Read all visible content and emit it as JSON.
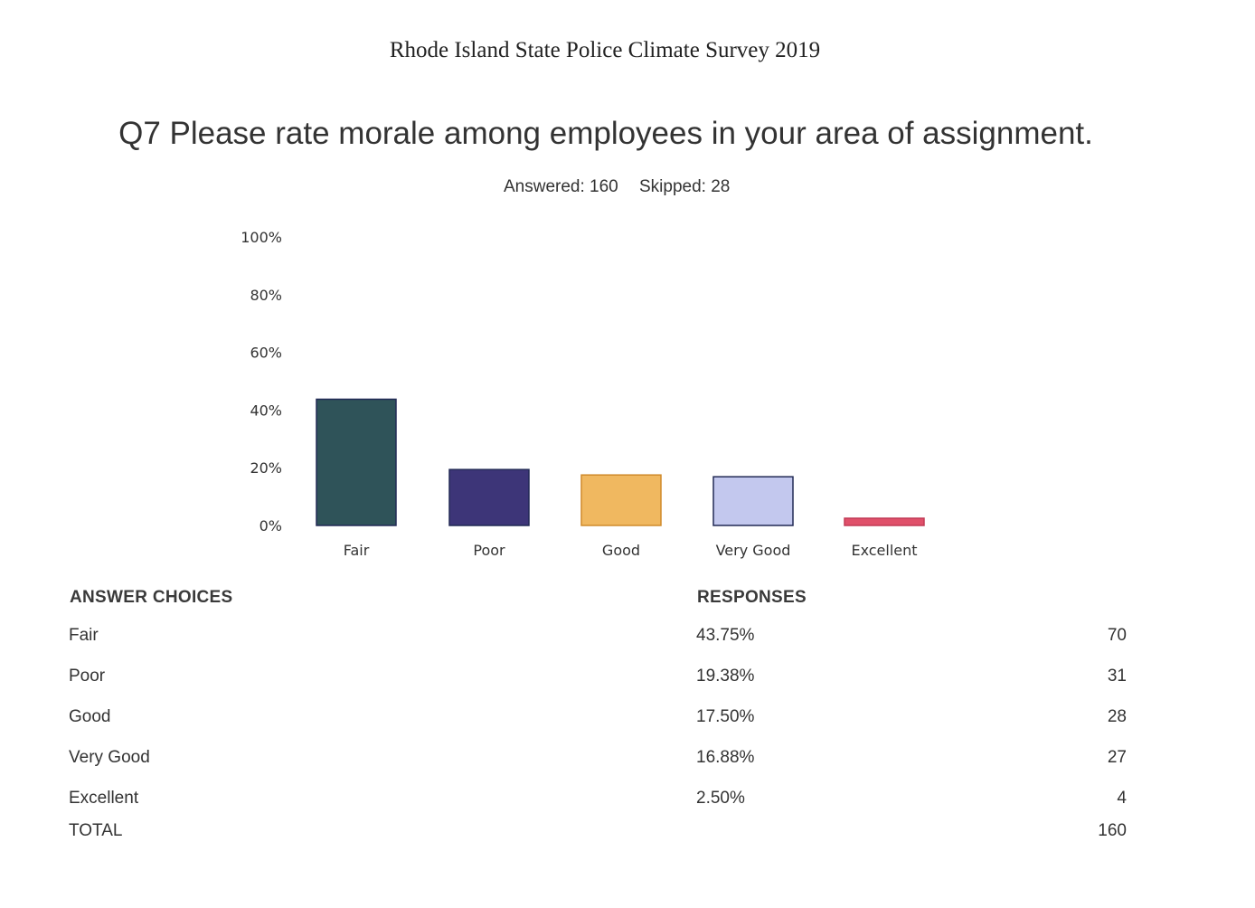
{
  "survey_title": "Rhode Island State Police Climate Survey 2019",
  "question": "Q7 Please rate morale among employees in your area of assignment.",
  "answered": "Answered: 160",
  "skipped": "Skipped: 28",
  "colors": {
    "Fair": "#2f5359",
    "Poor": "#3d3578",
    "Good": "#f0b860",
    "Very Good": "#c3c8ee",
    "Excellent": "#e0506a"
  },
  "chart_data": {
    "type": "bar",
    "categories": [
      "Fair",
      "Poor",
      "Good",
      "Very Good",
      "Excellent"
    ],
    "values": [
      43.75,
      19.38,
      17.5,
      16.88,
      2.5
    ],
    "ylim": [
      0,
      100
    ],
    "yticks": [
      "0%",
      "20%",
      "40%",
      "60%",
      "80%",
      "100%"
    ],
    "xlabel": "",
    "ylabel": "",
    "grid": false
  },
  "table": {
    "header_choices": "ANSWER CHOICES",
    "header_responses": "RESPONSES",
    "rows": [
      {
        "choice": "Fair",
        "percent": "43.75%",
        "count": "70"
      },
      {
        "choice": "Poor",
        "percent": "19.38%",
        "count": "31"
      },
      {
        "choice": "Good",
        "percent": "17.50%",
        "count": "28"
      },
      {
        "choice": "Very Good",
        "percent": "16.88%",
        "count": "27"
      },
      {
        "choice": "Excellent",
        "percent": "2.50%",
        "count": "4"
      }
    ],
    "total_label": "TOTAL",
    "total_count": "160"
  }
}
